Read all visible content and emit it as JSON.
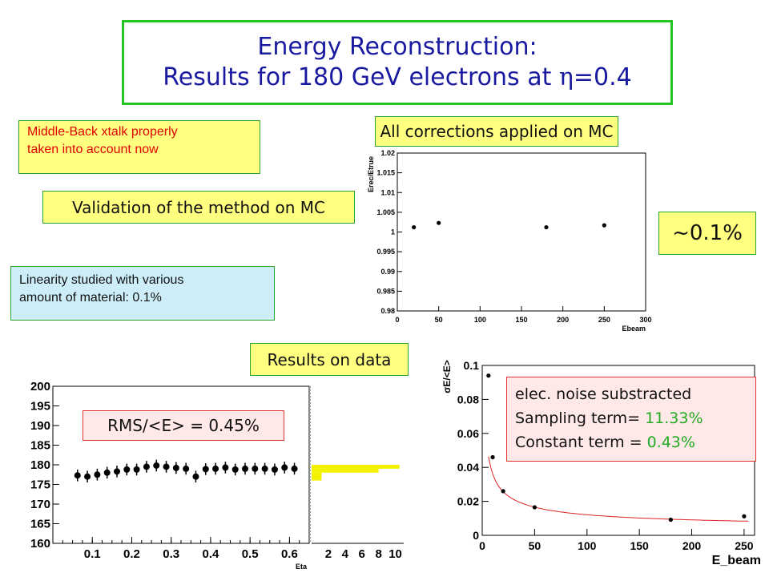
{
  "slide": {
    "title_line1": "Energy Reconstruction:",
    "title_line2_pre": "Results for 180 GeV electrons at ",
    "title_eta": "η",
    "title_line2_post": "=0.4",
    "note_xtalk": [
      "Middle-Back xtalk properly",
      "taken into account now"
    ],
    "label_corrections": "All corrections applied on MC",
    "label_validation": "Validation of the method on MC",
    "label_precision": "~0.1%",
    "note_linearity": [
      "Linearity studied with various",
      "amount of material: 0.1%"
    ],
    "label_results": "Results on data",
    "label_rms": "RMS/<E> = 0.45%",
    "fit_box": {
      "line1": "elec. noise substracted",
      "line2_label": "Sampling term= ",
      "line2_value": "11.33%",
      "line3_label": "Constant term = ",
      "line3_value": "0.43%",
      "value_color": "#22aa22"
    }
  },
  "chart_data": [
    {
      "type": "scatter",
      "title": "",
      "xlabel": "Ebeam",
      "ylabel": "Erec/Etrue",
      "xlim": [
        0,
        300
      ],
      "ylim": [
        0.98,
        1.02
      ],
      "xticks": [
        0,
        50,
        100,
        150,
        200,
        250,
        300
      ],
      "yticks": [
        0.98,
        0.985,
        0.99,
        0.995,
        1,
        1.005,
        1.01,
        1.015,
        1.02
      ],
      "x": [
        20,
        50,
        180,
        250
      ],
      "y": [
        1.0012,
        1.0023,
        1.0012,
        1.0017
      ],
      "grid": false
    },
    {
      "type": "scatter",
      "title": "",
      "xlabel": "Eta",
      "ylabel": "",
      "xlim": [
        0,
        0.65
      ],
      "ylim": [
        160,
        200
      ],
      "xticks": [
        0.1,
        0.2,
        0.3,
        0.4,
        0.5,
        0.6
      ],
      "yticks": [
        160,
        165,
        170,
        175,
        180,
        185,
        190,
        195,
        200
      ],
      "x": [
        0.0625,
        0.0875,
        0.1125,
        0.1375,
        0.1625,
        0.1875,
        0.2125,
        0.2375,
        0.2625,
        0.2875,
        0.3125,
        0.3375,
        0.3625,
        0.3875,
        0.4125,
        0.4375,
        0.4625,
        0.4875,
        0.5125,
        0.5375,
        0.5625,
        0.5875,
        0.6125
      ],
      "y": [
        177.3,
        177.0,
        177.5,
        178.0,
        178.3,
        178.8,
        178.8,
        179.5,
        179.8,
        179.5,
        179.2,
        179.0,
        177.0,
        178.9,
        179.0,
        179.3,
        178.8,
        179.0,
        179.0,
        179.0,
        178.8,
        179.3,
        179.0
      ],
      "y_error": 1.5,
      "grid": false,
      "projection": {
        "type": "histogram",
        "xticks": [
          2,
          4,
          6,
          8,
          10
        ],
        "bins": [
          {
            "y0": 176,
            "y1": 178,
            "count": 1.2
          },
          {
            "y0": 178,
            "y1": 179,
            "count": 8
          },
          {
            "y0": 179,
            "y1": 180,
            "count": 10.5
          }
        ]
      }
    },
    {
      "type": "scatter",
      "title": "",
      "xlabel": "E_beam",
      "ylabel": "σE/<E>",
      "xlim": [
        0,
        260
      ],
      "ylim": [
        0,
        0.1
      ],
      "xticks": [
        0,
        50,
        100,
        150,
        200,
        250
      ],
      "yticks": [
        0,
        0.02,
        0.04,
        0.06,
        0.08,
        0.1
      ],
      "x": [
        6,
        10,
        20,
        50,
        180,
        250
      ],
      "y": [
        0.094,
        0.046,
        0.026,
        0.0165,
        0.0092,
        0.0112
      ],
      "fit": {
        "sampling": 0.1133,
        "constant": 0.0043,
        "color": "#dd2222"
      },
      "grid": false
    }
  ]
}
